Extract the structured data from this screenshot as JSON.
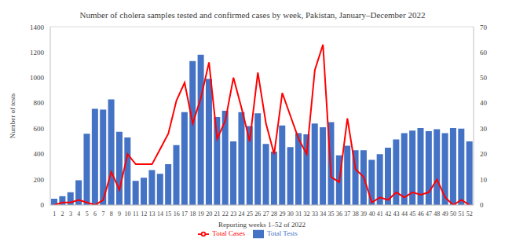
{
  "chart_data": {
    "type": "combo",
    "title": "Number of cholera samples tested and confirmed cases by week, Pakistan, January–December 2022",
    "x_label": "Reporting weeks 1–52 of 2022",
    "y_label": "Number of tests",
    "categories": [
      "1",
      "2",
      "3",
      "4",
      "5",
      "6",
      "7",
      "8",
      "9",
      "10",
      "11",
      "12",
      "13",
      "14",
      "15",
      "16",
      "17",
      "18",
      "19",
      "20",
      "21",
      "22",
      "23",
      "24",
      "25",
      "26",
      "27",
      "28",
      "29",
      "30",
      "31",
      "32",
      "33",
      "34",
      "35",
      "36",
      "37",
      "38",
      "39",
      "40",
      "41",
      "42",
      "43",
      "44",
      "45",
      "46",
      "47",
      "48",
      "49",
      "50",
      "51",
      "52"
    ],
    "series": [
      {
        "name": "Total Tests",
        "type": "bar",
        "color": "#4472c4",
        "values": [
          50,
          70,
          100,
          195,
          560,
          755,
          750,
          830,
          575,
          530,
          190,
          215,
          275,
          245,
          320,
          470,
          730,
          1130,
          1180,
          990,
          690,
          740,
          500,
          730,
          620,
          720,
          480,
          420,
          625,
          455,
          565,
          555,
          640,
          610,
          650,
          390,
          465,
          430,
          430,
          355,
          400,
          450,
          515,
          565,
          585,
          605,
          580,
          595,
          565,
          605,
          600,
          500
        ]
      },
      {
        "name": "Total Cases",
        "type": "line",
        "axis": "y2",
        "color": "#ff0000",
        "values": [
          0,
          1,
          1,
          2,
          1,
          0,
          2,
          13,
          6,
          20,
          16,
          16,
          16,
          22,
          28,
          41,
          48,
          32,
          42,
          56,
          26,
          33,
          50,
          38,
          25,
          52,
          32,
          20,
          44,
          35,
          26,
          20,
          53,
          63,
          11,
          9,
          34,
          14,
          11,
          1,
          3,
          2,
          5,
          3,
          5,
          4,
          5,
          10,
          3,
          0,
          2,
          0
        ]
      }
    ],
    "ylim": [
      0,
      1400
    ],
    "yticks": [
      0,
      200,
      400,
      600,
      800,
      1000,
      1200,
      1400
    ],
    "y2lim": [
      0,
      70
    ],
    "y2ticks": [
      0,
      10,
      20,
      30,
      40,
      50,
      60,
      70
    ],
    "grid": true,
    "legend": "bottom"
  }
}
